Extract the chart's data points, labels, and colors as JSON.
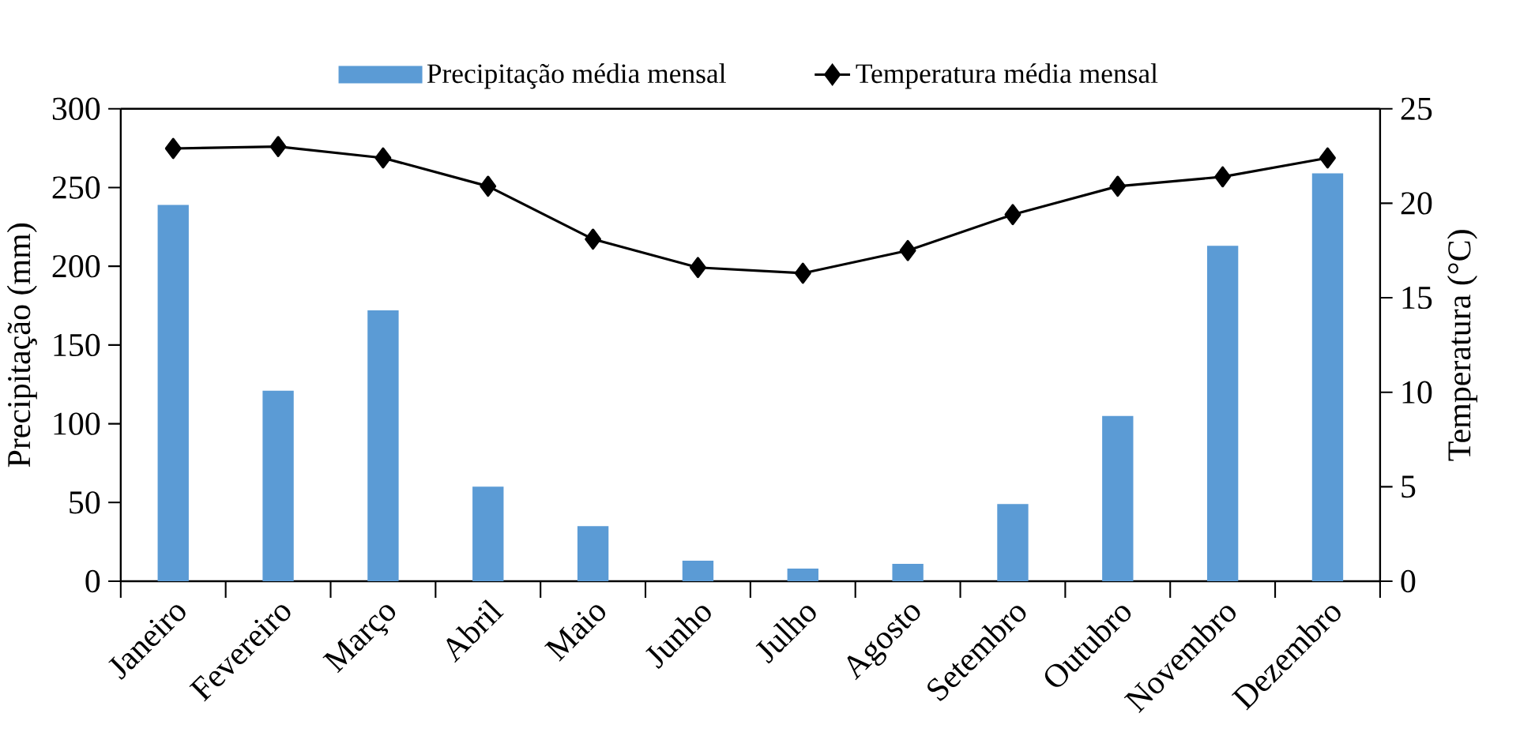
{
  "chart_data": {
    "type": "bar",
    "categories": [
      "Janeiro",
      "Fevereiro",
      "Março",
      "Abril",
      "Maio",
      "Junho",
      "Julho",
      "Agosto",
      "Setembro",
      "Outubro",
      "Novembro",
      "Dezembro"
    ],
    "series": [
      {
        "name": "Precipitação média mensal",
        "color": "#5b9bd5",
        "values": [
          239,
          121,
          172,
          60,
          35,
          13,
          8,
          11,
          49,
          105,
          213,
          259
        ]
      },
      {
        "name": "Temperatura média mensal",
        "type": "line",
        "axis": "y2",
        "color": "#000000",
        "marker": "diamond",
        "line_style": "solid",
        "values": [
          22.9,
          23.0,
          22.4,
          20.9,
          18.1,
          16.6,
          16.3,
          17.5,
          19.4,
          20.9,
          21.4,
          22.4
        ]
      }
    ],
    "ylabel": "Precipitação (mm)",
    "y2label": "Temperatura (°C)",
    "ylim": [
      0,
      300
    ],
    "yticks": [
      0,
      50,
      100,
      150,
      200,
      250,
      300
    ],
    "y2lim": [
      0,
      25
    ],
    "y2ticks": [
      0,
      5,
      10,
      15,
      20,
      25
    ],
    "legend": "top"
  }
}
